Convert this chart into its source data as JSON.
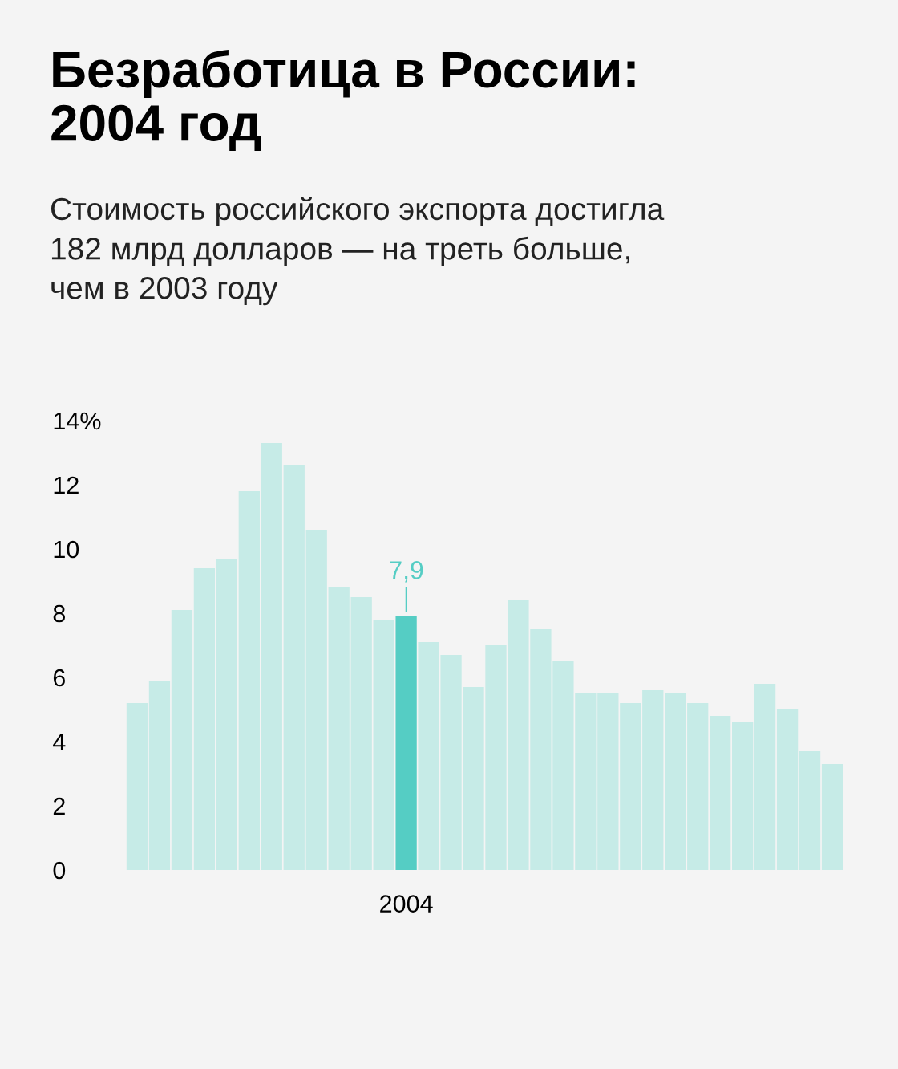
{
  "chart_data": {
    "type": "bar",
    "title": "Безработица в России:\n2004 год",
    "subtitle": "Стоимость российского экспорта достигла\n182 млрд долларов — на треть больше,\nчем в 2003 году",
    "categories": [
      null,
      null,
      null,
      null,
      null,
      null,
      null,
      null,
      null,
      null,
      null,
      null,
      "2004",
      null,
      null,
      null,
      null,
      null,
      null,
      null,
      null,
      null,
      null,
      null,
      null,
      null,
      null,
      null,
      null,
      null,
      null,
      null
    ],
    "values": [
      5.2,
      5.9,
      8.1,
      9.4,
      9.7,
      11.8,
      13.3,
      12.6,
      10.6,
      8.8,
      8.5,
      7.8,
      7.9,
      7.1,
      6.7,
      5.7,
      7.0,
      8.4,
      7.5,
      6.5,
      5.5,
      5.5,
      5.2,
      5.6,
      5.5,
      5.2,
      4.8,
      4.6,
      5.8,
      5.0,
      3.7,
      3.3
    ],
    "colors": [
      "#c6ebe7",
      "#c6ebe7",
      "#c6ebe7",
      "#c6ebe7",
      "#c6ebe7",
      "#c6ebe7",
      "#c6ebe7",
      "#c6ebe7",
      "#c6ebe7",
      "#c6ebe7",
      "#c6ebe7",
      "#c6ebe7",
      "#55cdc4",
      "#c6ebe7",
      "#c6ebe7",
      "#c6ebe7",
      "#c6ebe7",
      "#c6ebe7",
      "#c6ebe7",
      "#c6ebe7",
      "#c6ebe7",
      "#c6ebe7",
      "#c6ebe7",
      "#c6ebe7",
      "#c6ebe7",
      "#c6ebe7",
      "#c6ebe7",
      "#c6ebe7",
      "#c6ebe7",
      "#c6ebe7",
      "#c6ebe7",
      "#c6ebe7"
    ],
    "value_labels": [
      null,
      null,
      null,
      null,
      null,
      null,
      null,
      null,
      null,
      null,
      null,
      null,
      "7,9",
      null,
      null,
      null,
      null,
      null,
      null,
      null,
      null,
      null,
      null,
      null,
      null,
      null,
      null,
      null,
      null,
      null,
      null,
      null
    ],
    "ylim": [
      0,
      14
    ],
    "yticks": [
      0,
      2,
      4,
      6,
      8,
      10,
      12,
      {
        "value": 14,
        "label": "14%"
      }
    ],
    "grid": false,
    "legend": false
  }
}
